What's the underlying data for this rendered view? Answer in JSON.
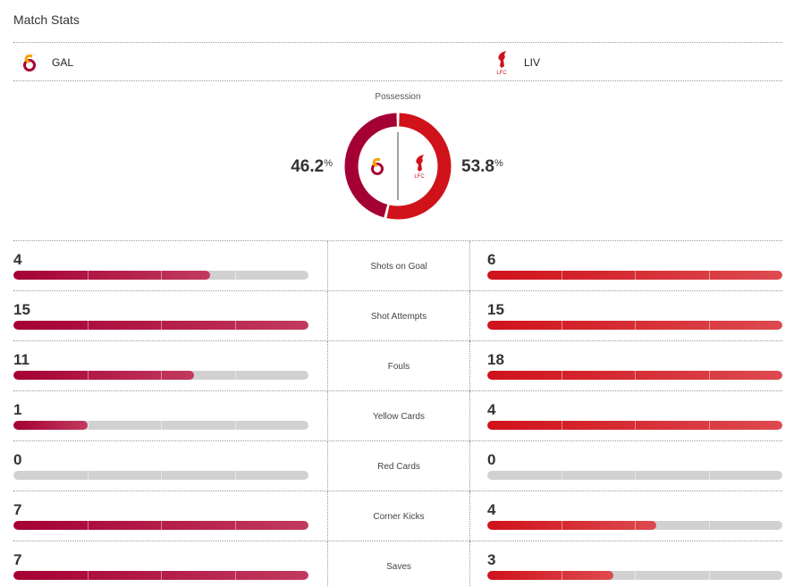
{
  "title": "Match Stats",
  "teams": {
    "home": {
      "abbr": "GAL",
      "color": "#a50034"
    },
    "away": {
      "abbr": "LIV",
      "color": "#d0121b",
      "crest_text": "LFC"
    }
  },
  "possession": {
    "label": "Possession",
    "home": "46.2",
    "away": "53.8",
    "unit": "%",
    "home_value": 46.2,
    "away_value": 53.8
  },
  "stats": [
    {
      "label": "Shots on Goal",
      "home": "4",
      "away": "6"
    },
    {
      "label": "Shot Attempts",
      "home": "15",
      "away": "15"
    },
    {
      "label": "Fouls",
      "home": "11",
      "away": "18"
    },
    {
      "label": "Yellow Cards",
      "home": "1",
      "away": "4"
    },
    {
      "label": "Red Cards",
      "home": "0",
      "away": "0"
    },
    {
      "label": "Corner Kicks",
      "home": "7",
      "away": "4"
    },
    {
      "label": "Saves",
      "home": "7",
      "away": "3"
    }
  ]
}
